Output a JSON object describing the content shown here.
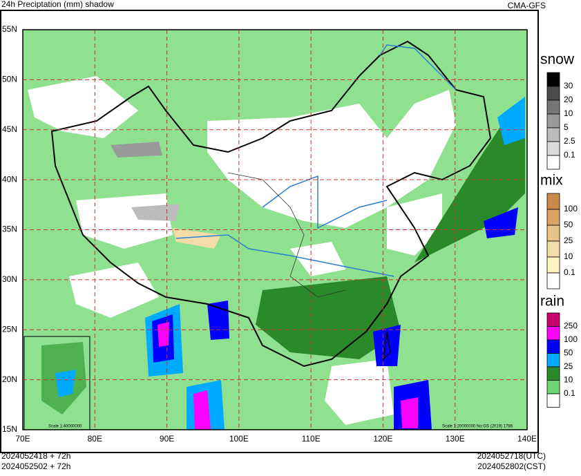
{
  "header": {
    "title": "24h Preciptation (mm) shadow",
    "model": "CMA-GFS"
  },
  "map": {
    "lat_labels": [
      "55N",
      "50N",
      "45N",
      "40N",
      "35N",
      "30N",
      "25N",
      "20N",
      "15N"
    ],
    "lon_labels": [
      "70E",
      "80E",
      "90E",
      "100E",
      "110E",
      "120E",
      "130E",
      "140E"
    ],
    "scale_main": "Scale 1:20000000 No:GS (2019) 1786",
    "scale_inset": "Scale 1:40000000"
  },
  "legends": [
    {
      "title": "snow",
      "labels": [
        "30",
        "20",
        "10",
        "5",
        "2.5",
        "0.1"
      ],
      "colors": [
        "#000000",
        "#4a4a4a",
        "#767676",
        "#9a9a9a",
        "#bcbcbc",
        "#dcdcdc",
        "#ffffff"
      ]
    },
    {
      "title": "mix",
      "labels": [
        "100",
        "50",
        "25",
        "10",
        "0.1"
      ],
      "colors": [
        "#c98a4b",
        "#dba466",
        "#e9c287",
        "#f3dca8",
        "#fff3c2",
        "#ffffff"
      ]
    },
    {
      "title": "rain",
      "labels": [
        "250",
        "100",
        "50",
        "25",
        "10",
        "0.1"
      ],
      "colors": [
        "#c8006e",
        "#ff00ff",
        "#0000ff",
        "#00aaff",
        "#2a8a2a",
        "#6fd46f",
        "#ffffff"
      ]
    }
  ],
  "footer": {
    "init_utc": "2024052418 + 72h",
    "init_cst": "2024052502 + 72h",
    "valid_utc": "2024052718(UTC)",
    "valid_cst": "2024052802(CST)"
  }
}
